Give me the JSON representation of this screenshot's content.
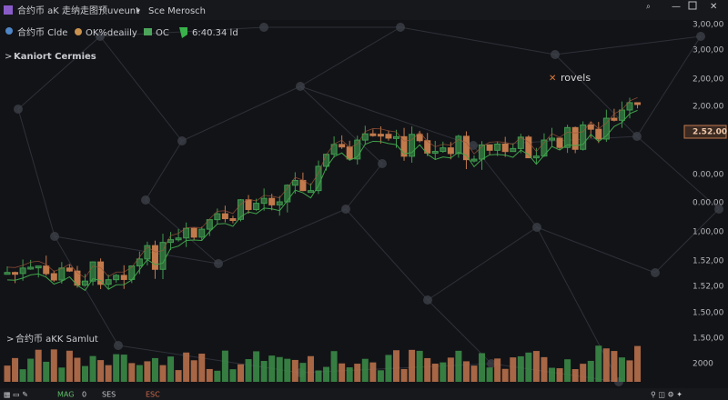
{
  "header": {
    "title": "合约币 aK 走纳走图预uveunt",
    "tab": "Sce Merosch"
  },
  "toolbar": {
    "items": [
      "合约币 Clde",
      "OK%deaiily",
      "OC",
      "6:40.34 ld"
    ]
  },
  "panel_title": "Kaniort Cermies",
  "annotation": "rovels",
  "price_axis": {
    "labels": [
      "3,00,00",
      "3,00,00",
      "2,00,00",
      "2,00.00",
      "2.52.00",
      "0.00,00",
      "0.00.00",
      "1,00,00",
      "1.52,00",
      "1.52,00",
      "1.50,00",
      "1.50,00",
      "2000"
    ],
    "current_index": 4
  },
  "volume_title": "合约币 aKK Samlut",
  "footer": {
    "items": [
      "MAG",
      "0",
      "SES",
      "ESC"
    ]
  }
}
